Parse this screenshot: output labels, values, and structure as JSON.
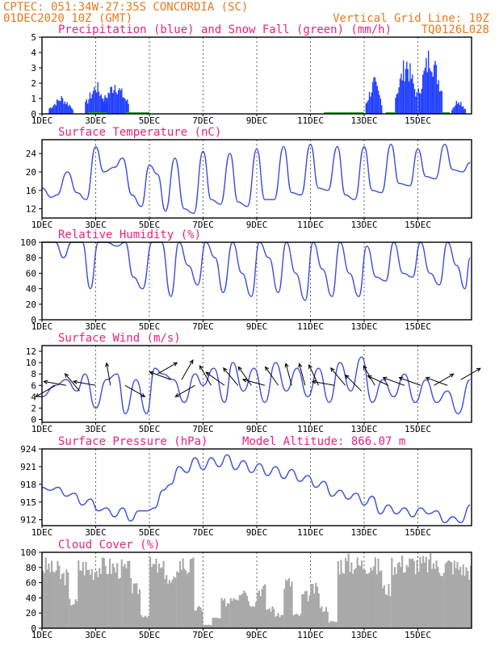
{
  "header": {
    "line1": "CPTEC:   051:34W-27:35S   CONCORDIA (SC)",
    "line2": "01DEC2020 10Z (GMT)",
    "grid_note": "Vertical Grid Line: 10Z",
    "code": "TQ0126L028"
  },
  "colors": {
    "header": "#e8781e",
    "title": "#e8237e",
    "precip": "#1f3dff",
    "snow": "#22aa22",
    "line": "#3a4fd6",
    "cloud": "#a9a9a9",
    "wind_arrow": "#000000"
  },
  "chart_data": [
    {
      "type": "bar",
      "id": "precip",
      "title": "Precipitation (blue) and Snow Fall (green) (mm/h)",
      "ylim": [
        0,
        5
      ],
      "yticks": [
        0,
        1,
        2,
        3,
        4,
        5
      ],
      "x_labels": [
        "1DEC",
        "3DEC",
        "5DEC",
        "7DEC",
        "9DEC",
        "11DEC",
        "13DEC",
        "15DEC"
      ],
      "series": [
        {
          "name": "Precipitation",
          "events": [
            [
              0.7,
              0.9,
              1.3
            ],
            [
              2.0,
              0.8,
              2.3
            ],
            [
              2.7,
              1.0,
              2.5
            ],
            [
              12.35,
              0.6,
              2.6
            ],
            [
              13.55,
              0.8,
              4.3
            ],
            [
              14.45,
              0.9,
              5.0
            ],
            [
              15.5,
              0.5,
              1.2
            ]
          ]
        },
        {
          "name": "Snow Fall",
          "values": []
        }
      ]
    },
    {
      "type": "line",
      "id": "temp",
      "title": "Surface Temperature (nC)",
      "ylim": [
        10,
        27
      ],
      "yticks": [
        12,
        16,
        20,
        24
      ],
      "x": [
        0,
        0.35,
        0.55,
        0.95,
        1.3,
        1.65,
        2.0,
        2.3,
        2.7,
        3.0,
        3.35,
        3.7,
        4.0,
        4.3,
        4.6,
        4.95,
        5.3,
        5.65,
        6.0,
        6.3,
        6.65,
        7.0,
        7.3,
        7.65,
        8.0,
        8.3,
        8.65,
        9.0,
        9.3,
        9.65,
        10.0,
        10.3,
        10.65,
        11.0,
        11.3,
        11.65,
        12.0,
        12.3,
        12.65,
        13.0,
        13.3,
        13.7,
        14.0,
        14.3,
        14.65,
        15.0,
        15.3,
        15.65,
        15.95
      ],
      "series": [
        {
          "name": "",
          "values": [
            16.5,
            14.5,
            15,
            20,
            15.5,
            14,
            25.5,
            20,
            21,
            23,
            15,
            12.5,
            21.5,
            19.5,
            11.5,
            23,
            12,
            11,
            24.5,
            14,
            13,
            24,
            13.5,
            12.5,
            25,
            14,
            14,
            25.5,
            15.5,
            15,
            26,
            16.5,
            16,
            25.5,
            15,
            14,
            25.5,
            16,
            15.5,
            26,
            17.5,
            17,
            25,
            19,
            18.5,
            26,
            20.5,
            20,
            22
          ]
        }
      ]
    },
    {
      "type": "line",
      "id": "rh",
      "title": "Relative Humidity (%)",
      "ylim": [
        0,
        100
      ],
      "yticks": [
        0,
        20,
        40,
        60,
        80,
        100
      ],
      "x": [
        0,
        0.5,
        0.8,
        1.1,
        1.5,
        1.8,
        2.1,
        2.4,
        2.8,
        3.1,
        3.4,
        3.75,
        4.1,
        4.45,
        4.8,
        5.1,
        5.45,
        5.8,
        6.1,
        6.45,
        6.75,
        7.1,
        7.45,
        7.8,
        8.1,
        8.45,
        8.8,
        9.1,
        9.45,
        9.8,
        10.1,
        10.45,
        10.8,
        11.1,
        11.45,
        11.8,
        12.1,
        12.45,
        12.8,
        13.1,
        13.45,
        13.8,
        14.1,
        14.45,
        14.8,
        15.1,
        15.45,
        15.75,
        15.95
      ],
      "series": [
        {
          "name": "",
          "values": [
            100,
            100,
            80,
            100,
            100,
            40,
            100,
            100,
            95,
            100,
            55,
            40,
            100,
            100,
            30,
            100,
            70,
            45,
            100,
            80,
            35,
            100,
            60,
            30,
            100,
            80,
            35,
            100,
            60,
            25,
            100,
            65,
            30,
            100,
            60,
            30,
            95,
            55,
            50,
            100,
            60,
            55,
            100,
            60,
            45,
            100,
            70,
            40,
            80
          ]
        }
      ]
    },
    {
      "type": "line",
      "id": "wind",
      "title": "Surface Wind (m/s)",
      "ylim": [
        -0.5,
        13
      ],
      "yticks": [
        0,
        2,
        4,
        6,
        8,
        10,
        12
      ],
      "x": [
        0,
        0.5,
        0.9,
        1.3,
        1.6,
        2.0,
        2.4,
        2.8,
        3.1,
        3.5,
        3.9,
        4.2,
        4.5,
        4.9,
        5.3,
        5.7,
        6.0,
        6.4,
        6.8,
        7.1,
        7.5,
        7.9,
        8.3,
        8.7,
        9.1,
        9.5,
        9.9,
        10.3,
        10.7,
        11.1,
        11.5,
        11.9,
        12.3,
        12.7,
        13.1,
        13.5,
        13.9,
        14.3,
        14.7,
        15.1,
        15.5,
        15.95
      ],
      "series": [
        {
          "name": "",
          "values": [
            4,
            6,
            7,
            5,
            8,
            2,
            7,
            8,
            1,
            7,
            1,
            9,
            8,
            7,
            3,
            8,
            6,
            9,
            3,
            10,
            5,
            9,
            3,
            10,
            5,
            9,
            4,
            9,
            3,
            10,
            5,
            11,
            3,
            7,
            4,
            8,
            3,
            7,
            3,
            5,
            1,
            7
          ]
        }
      ],
      "arrows": [
        [
          0.5,
          6,
          150
        ],
        [
          0.9,
          6,
          190
        ],
        [
          1.4,
          5,
          230
        ],
        [
          2.0,
          6,
          190
        ],
        [
          2.55,
          6,
          260
        ],
        [
          3.1,
          6,
          30
        ],
        [
          4.3,
          8,
          330
        ],
        [
          4.8,
          7,
          200
        ],
        [
          5.2,
          7,
          300
        ],
        [
          5.7,
          6,
          150
        ],
        [
          6.3,
          6,
          240
        ],
        [
          6.8,
          6,
          215
        ],
        [
          7.3,
          6,
          230
        ],
        [
          7.8,
          6,
          235
        ],
        [
          8.3,
          6,
          195
        ],
        [
          8.8,
          6,
          235
        ],
        [
          9.3,
          6,
          255
        ],
        [
          9.8,
          6,
          255
        ],
        [
          10.3,
          6,
          245
        ],
        [
          10.9,
          6,
          190
        ],
        [
          11.3,
          6,
          230
        ],
        [
          11.9,
          5,
          225
        ],
        [
          12.4,
          6,
          240
        ],
        [
          12.9,
          6,
          205
        ],
        [
          13.5,
          6,
          200
        ],
        [
          14.1,
          6,
          200
        ],
        [
          14.6,
          6,
          330
        ],
        [
          15.1,
          6,
          200
        ],
        [
          15.6,
          7,
          330
        ]
      ]
    },
    {
      "type": "line",
      "id": "pressure",
      "title": "Surface Pressure (hPa)",
      "note": "Model Altitude: 866.07 m",
      "ylim": [
        911,
        924
      ],
      "yticks": [
        912,
        915,
        918,
        921,
        924
      ],
      "x": [
        0,
        0.3,
        0.6,
        0.9,
        1.2,
        1.5,
        1.8,
        2.1,
        2.4,
        2.7,
        3.0,
        3.3,
        3.6,
        3.9,
        4.2,
        4.5,
        4.8,
        5.1,
        5.4,
        5.7,
        6.0,
        6.3,
        6.6,
        6.9,
        7.2,
        7.5,
        7.8,
        8.1,
        8.4,
        8.7,
        9.0,
        9.3,
        9.6,
        9.9,
        10.2,
        10.5,
        10.8,
        11.1,
        11.4,
        11.7,
        12.0,
        12.3,
        12.6,
        12.9,
        13.2,
        13.5,
        13.8,
        14.1,
        14.4,
        14.7,
        15.0,
        15.3,
        15.6,
        15.95
      ],
      "series": [
        {
          "name": "",
          "values": [
            917.5,
            917,
            917.5,
            916,
            916.5,
            914.5,
            915.5,
            913.5,
            914,
            912.5,
            914,
            911.8,
            913.5,
            913.5,
            914,
            917,
            918,
            921,
            920,
            922.5,
            920.5,
            922.5,
            921,
            923,
            920.5,
            922,
            920,
            921.5,
            919.5,
            921,
            919,
            920.5,
            918.5,
            919.5,
            917.5,
            918.5,
            916,
            917,
            915.5,
            916.5,
            914.5,
            916,
            913,
            914.5,
            913,
            914,
            912.5,
            914,
            913,
            913.5,
            911.5,
            912.5,
            911.5,
            914.5
          ]
        }
      ]
    },
    {
      "type": "bar",
      "id": "cloud",
      "title": "Cloud Cover (%)",
      "ylim": [
        0,
        100
      ],
      "yticks": [
        0,
        20,
        40,
        60,
        80,
        100
      ],
      "x": [
        0,
        0.33,
        0.66,
        1.0,
        1.33,
        1.66,
        2.0,
        2.33,
        2.66,
        3.0,
        3.33,
        3.66,
        4.0,
        4.33,
        4.66,
        5.0,
        5.33,
        5.66,
        6.0,
        6.33,
        6.66,
        7.0,
        7.33,
        7.66,
        8.0,
        8.33,
        8.66,
        9.0,
        9.33,
        9.66,
        10.0,
        10.33,
        10.66,
        11.0,
        11.33,
        11.66,
        12.0,
        12.33,
        12.66,
        13.0,
        13.33,
        13.66,
        14.0,
        14.33,
        14.66,
        15.0,
        15.33,
        15.66
      ],
      "series": [
        {
          "name": "",
          "values": [
            95,
            90,
            80,
            40,
            95,
            90,
            95,
            95,
            92,
            90,
            60,
            20,
            95,
            90,
            70,
            100,
            95,
            30,
            5,
            15,
            40,
            50,
            60,
            40,
            60,
            30,
            20,
            70,
            20,
            50,
            60,
            30,
            10,
            100,
            100,
            98,
            100,
            95,
            60,
            100,
            100,
            100,
            98,
            100,
            95,
            98,
            95,
            90
          ]
        }
      ]
    }
  ]
}
